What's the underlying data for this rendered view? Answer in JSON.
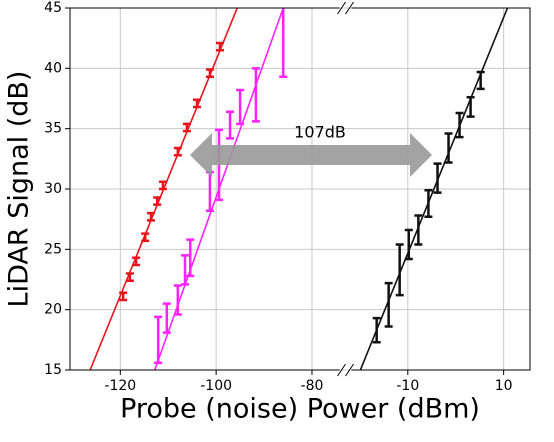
{
  "chart_data": {
    "type": "errorbar",
    "xlabel": "Probe (noise) Power (dBm)",
    "ylabel": "LiDAR Signal (dB)",
    "xlim": [
      -130.5,
      15.5
    ],
    "xbreak": [
      -73,
      -23
    ],
    "xticks": [
      -120,
      -100,
      -80,
      -10,
      10
    ],
    "ylim": [
      15,
      45
    ],
    "yticks": [
      15,
      20,
      25,
      30,
      35,
      40,
      45
    ],
    "grid": true,
    "annotation": "107dB",
    "series": [
      {
        "color": "#e8141c",
        "x": [
          -119.4,
          -118,
          -116.7,
          -114.8,
          -113.6,
          -112.3,
          -111.1,
          -108,
          -106.1,
          -104,
          -101.3,
          -99.2
        ],
        "y": [
          21.1,
          22.7,
          24.0,
          26.0,
          27.7,
          29.0,
          30.3,
          33.1,
          35.1,
          37.1,
          39.6,
          41.8
        ],
        "err": [
          0.3,
          0.3,
          0.3,
          0.3,
          0.3,
          0.3,
          0.3,
          0.3,
          0.3,
          0.3,
          0.3,
          0.3
        ],
        "fit_x": [
          -126.3,
          -95.6
        ],
        "fit_y": [
          15,
          45
        ]
      },
      {
        "color": "#ff22ff",
        "x": [
          -112.1,
          -110.3,
          -108,
          -106.5,
          -105.4,
          -101.3,
          -99.4,
          -97.1,
          -95,
          -91.7,
          -86
        ],
        "y": [
          17.5,
          19.3,
          20.8,
          23.3,
          24.3,
          29.8,
          32.0,
          35.3,
          36.8,
          37.8,
          43.0
        ],
        "err": [
          1.9,
          1.2,
          1.2,
          1.2,
          1.5,
          1.6,
          2.9,
          1.1,
          1.4,
          2.2,
          3.7
        ],
        "fit_x": [
          -112.8,
          -86.0
        ],
        "fit_y": [
          15,
          45
        ]
      },
      {
        "color": "#111111",
        "x": [
          -16.5,
          -14.0,
          -11.7,
          -9.8,
          -7.8,
          -5.7,
          -3.8,
          -1.5,
          0.8,
          3.1,
          5.2
        ],
        "y": [
          18.3,
          20.4,
          23.3,
          25.4,
          26.6,
          28.8,
          30.9,
          33.4,
          35.3,
          36.8,
          39.0
        ],
        "err": [
          1.0,
          1.8,
          2.1,
          1.2,
          1.2,
          1.1,
          1.2,
          1.2,
          1.0,
          0.8,
          0.7
        ],
        "fit_x": [
          -19.9,
          10.8
        ],
        "fit_y": [
          15,
          45
        ]
      }
    ]
  }
}
